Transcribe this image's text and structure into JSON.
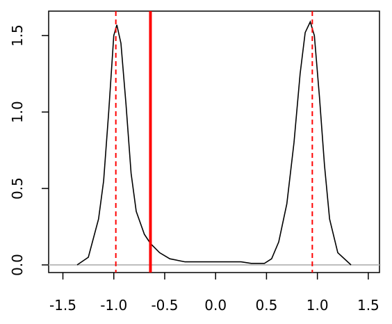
{
  "chart_data": {
    "type": "line",
    "x": [
      -1.36,
      -1.25,
      -1.15,
      -1.1,
      -1.05,
      -1.0,
      -0.97,
      -0.93,
      -0.88,
      -0.83,
      -0.78,
      -0.7,
      -0.64,
      -0.55,
      -0.45,
      -0.3,
      0.25,
      0.35,
      0.48,
      0.55,
      0.62,
      0.7,
      0.77,
      0.83,
      0.88,
      0.93,
      0.97,
      1.02,
      1.07,
      1.12,
      1.2,
      1.33
    ],
    "series": [
      {
        "color": "#000000",
        "values": [
          0.0,
          0.05,
          0.3,
          0.55,
          1.0,
          1.5,
          1.57,
          1.45,
          1.05,
          0.6,
          0.35,
          0.2,
          0.14,
          0.08,
          0.04,
          0.02,
          0.02,
          0.01,
          0.01,
          0.04,
          0.15,
          0.4,
          0.8,
          1.25,
          1.52,
          1.59,
          1.5,
          1.1,
          0.65,
          0.3,
          0.08,
          0.0
        ]
      }
    ],
    "xlim": [
      -1.64,
      1.61
    ],
    "ylim": [
      -0.05,
      1.66
    ],
    "xticks": [
      -1.5,
      {
        "value": -1.0,
        "label": "-1.0"
      },
      -0.5,
      {
        "value": 0.0,
        "label": "0.0"
      },
      0.5,
      {
        "value": 1.0,
        "label": "1.0"
      },
      1.5
    ],
    "yticks": [
      {
        "value": 0.0,
        "label": "0.0"
      },
      0.5,
      {
        "value": 1.0,
        "label": "1.0"
      },
      1.5
    ],
    "hline": {
      "value": 0,
      "color": "#bebebe"
    },
    "vlines": [
      {
        "value": -0.98,
        "color": "#ff0000",
        "style": "dashed"
      },
      {
        "value": 0.95,
        "color": "#ff0000",
        "style": "dashed"
      },
      {
        "value": -0.64,
        "color": "#ff0000",
        "style": "solid"
      }
    ]
  }
}
